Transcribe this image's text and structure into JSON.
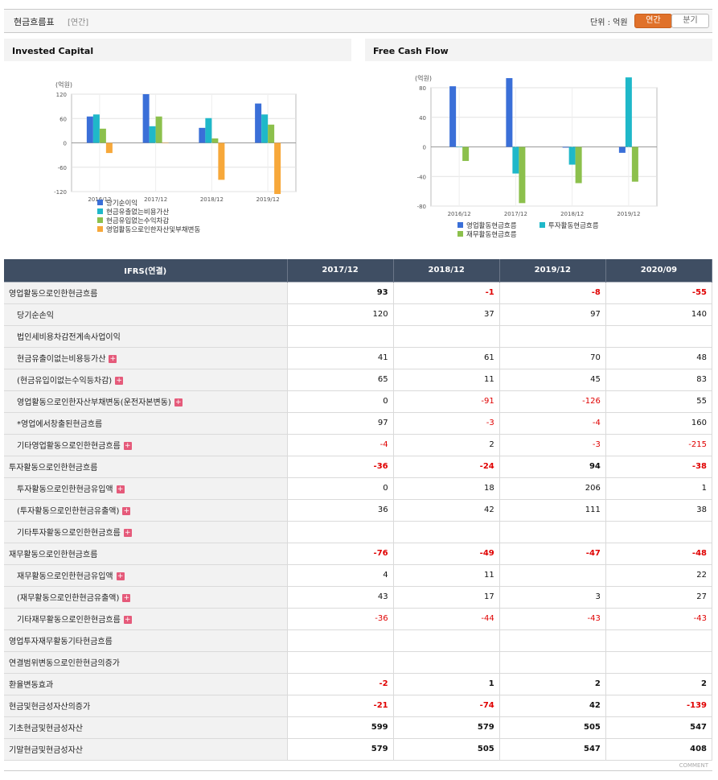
{
  "header": {
    "title": "현금흐름표",
    "sub": "[연간]",
    "unit_label": "단위 : 억원",
    "tab_annual": "연간",
    "tab_quarter": "분기"
  },
  "charts": [
    {
      "title": "Invested Capital",
      "unit": "(억원)",
      "chart_data": {
        "type": "bar",
        "categories": [
          "2016/12",
          "2017/12",
          "2018/12",
          "2019/12"
        ],
        "ylim": [
          -120,
          120
        ],
        "yticks": [
          120,
          60,
          0,
          -60,
          -120
        ],
        "series": [
          {
            "name": "당기순이익",
            "color": "#3a6fd8",
            "values": [
              65,
              120,
              37,
              97
            ]
          },
          {
            "name": "현금유출없는비용가산",
            "color": "#1fb8c9",
            "values": [
              70,
              41,
              61,
              70
            ]
          },
          {
            "name": "현금유입없는수익차감",
            "color": "#8cc04c",
            "values": [
              35,
              65,
              11,
              45
            ]
          },
          {
            "name": "영업활동으로인한자산및부채변동",
            "color": "#f7a83a",
            "values": [
              -25,
              0,
              -91,
              -126
            ]
          }
        ]
      }
    },
    {
      "title": "Free Cash Flow",
      "unit": "(억원)",
      "chart_data": {
        "type": "bar",
        "categories": [
          "2016/12",
          "2017/12",
          "2018/12",
          "2019/12"
        ],
        "ylim": [
          -80,
          80
        ],
        "yticks": [
          80,
          40,
          0,
          -40,
          -80
        ],
        "series": [
          {
            "name": "영업활동현금흐름",
            "color": "#3a6fd8",
            "values": [
              82,
              93,
              -1,
              -8
            ]
          },
          {
            "name": "투자활동현금흐름",
            "color": "#1fb8c9",
            "values": [
              0,
              -36,
              -24,
              94
            ]
          },
          {
            "name": "재무활동현금흐름",
            "color": "#8cc04c",
            "values": [
              -19,
              -76,
              -49,
              -47
            ]
          }
        ]
      }
    }
  ],
  "table": {
    "columns": [
      "IFRS(연결)",
      "2017/12",
      "2018/12",
      "2019/12",
      "2020/09"
    ],
    "rows": [
      {
        "label": "영업활동으로인한현금흐름",
        "major": true,
        "plus": false,
        "values": [
          "93",
          "-1",
          "-8",
          "-55"
        ]
      },
      {
        "label": "당기순손익",
        "major": false,
        "plus": false,
        "values": [
          "120",
          "37",
          "97",
          "140"
        ]
      },
      {
        "label": "법인세비용차감전계속사업이익",
        "major": false,
        "plus": false,
        "values": [
          "",
          "",
          "",
          ""
        ]
      },
      {
        "label": "현금유출이없는비용등가산",
        "major": false,
        "plus": true,
        "values": [
          "41",
          "61",
          "70",
          "48"
        ]
      },
      {
        "label": "(현금유입이없는수익등차감)",
        "major": false,
        "plus": true,
        "values": [
          "65",
          "11",
          "45",
          "83"
        ]
      },
      {
        "label": "영업활동으로인한자산부채변동(운전자본변동)",
        "major": false,
        "plus": true,
        "values": [
          "0",
          "-91",
          "-126",
          "55"
        ]
      },
      {
        "label": "*영업에서창출된현금흐름",
        "major": false,
        "plus": false,
        "values": [
          "97",
          "-3",
          "-4",
          "160"
        ]
      },
      {
        "label": "기타영업활동으로인한현금흐름",
        "major": false,
        "plus": true,
        "values": [
          "-4",
          "2",
          "-3",
          "-215"
        ]
      },
      {
        "label": "투자활동으로인한현금흐름",
        "major": true,
        "plus": false,
        "values": [
          "-36",
          "-24",
          "94",
          "-38"
        ]
      },
      {
        "label": "투자활동으로인한현금유입액",
        "major": false,
        "plus": true,
        "values": [
          "0",
          "18",
          "206",
          "1"
        ]
      },
      {
        "label": "(투자활동으로인한현금유출액)",
        "major": false,
        "plus": true,
        "values": [
          "36",
          "42",
          "111",
          "38"
        ]
      },
      {
        "label": "기타투자활동으로인한현금흐름",
        "major": false,
        "plus": true,
        "values": [
          "",
          "",
          "",
          ""
        ]
      },
      {
        "label": "재무활동으로인한현금흐름",
        "major": true,
        "plus": false,
        "values": [
          "-76",
          "-49",
          "-47",
          "-48"
        ]
      },
      {
        "label": "재무활동으로인한현금유입액",
        "major": false,
        "plus": true,
        "values": [
          "4",
          "11",
          "",
          "22"
        ]
      },
      {
        "label": "(재무활동으로인한현금유출액)",
        "major": false,
        "plus": true,
        "values": [
          "43",
          "17",
          "3",
          "27"
        ]
      },
      {
        "label": "기타재무활동으로인한현금흐름",
        "major": false,
        "plus": true,
        "values": [
          "-36",
          "-44",
          "-43",
          "-43"
        ]
      },
      {
        "label": "영업투자재무활동기타현금흐름",
        "major": true,
        "plus": false,
        "values": [
          "",
          "",
          "",
          ""
        ]
      },
      {
        "label": "연결범위변동으로인한현금의증가",
        "major": true,
        "plus": false,
        "values": [
          "",
          "",
          "",
          ""
        ]
      },
      {
        "label": "환율변동효과",
        "major": true,
        "plus": false,
        "values": [
          "-2",
          "1",
          "2",
          "2"
        ]
      },
      {
        "label": "현금및현금성자산의증가",
        "major": true,
        "plus": false,
        "values": [
          "-21",
          "-74",
          "42",
          "-139"
        ]
      },
      {
        "label": "기초현금및현금성자산",
        "major": true,
        "plus": false,
        "values": [
          "599",
          "579",
          "505",
          "547"
        ]
      },
      {
        "label": "기말현금및현금성자산",
        "major": true,
        "plus": false,
        "values": [
          "579",
          "505",
          "547",
          "408"
        ]
      }
    ]
  },
  "footer": {
    "comment": "COMMENT"
  }
}
